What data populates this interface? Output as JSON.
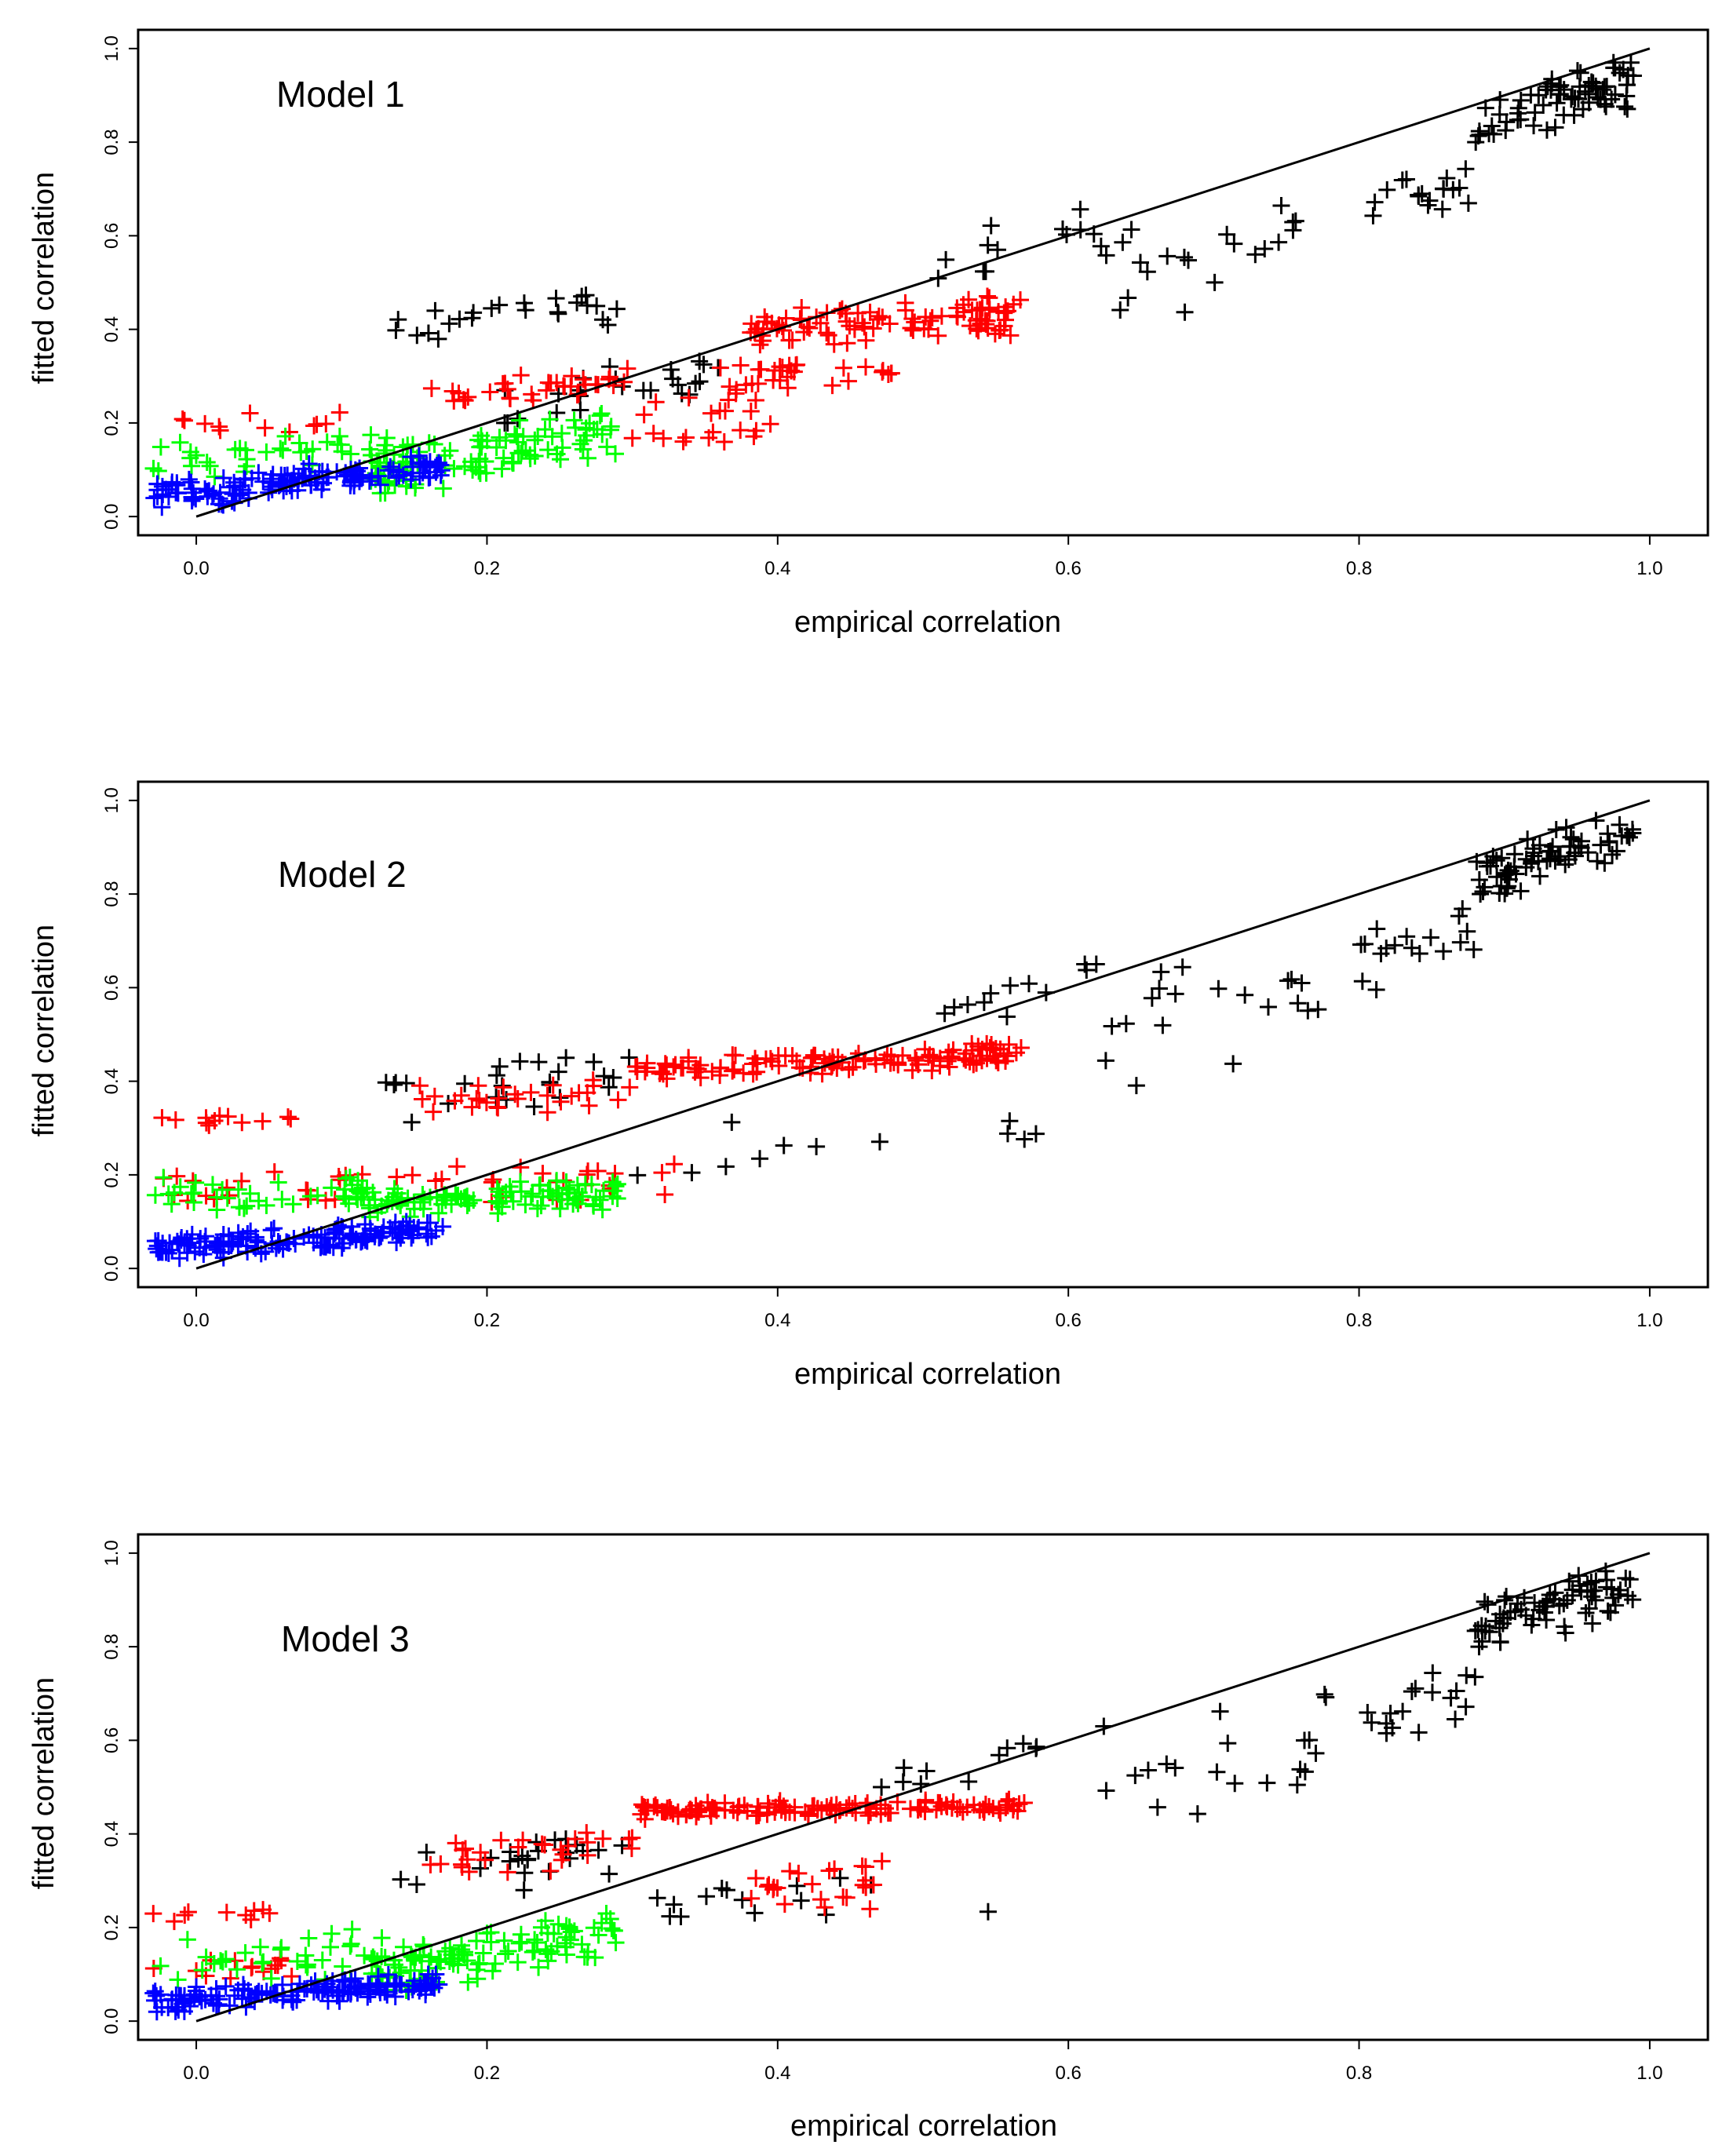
{
  "figure": {
    "panels": [
      {
        "id": "model1",
        "title": "Model 1"
      },
      {
        "id": "model2",
        "title": "Model 2"
      },
      {
        "id": "model3",
        "title": "Model 3"
      }
    ]
  },
  "chart_data": [
    {
      "type": "scatter",
      "title": "Model 1",
      "xlabel": "empirical correlation",
      "ylabel": "fitted correlation",
      "xlim": [
        -0.04,
        1.04
      ],
      "ylim": [
        -0.04,
        1.04
      ],
      "xticks": [
        "0.0",
        "0.2",
        "0.4",
        "0.6",
        "0.8",
        "1.0"
      ],
      "yticks": [
        "0.0",
        "0.2",
        "0.4",
        "0.6",
        "0.8",
        "1.0"
      ],
      "grid": false,
      "marker": "+",
      "reference_line": {
        "name": "identity line y = x",
        "x": [
          0,
          1
        ],
        "y": [
          0,
          1
        ]
      },
      "series": [
        {
          "name": "black",
          "color": "#000000",
          "clusters": [
            {
              "n": 25,
              "x": [
                0.13,
                0.3
              ],
              "y": [
                0.37,
                0.5
              ],
              "slope": 0.2
            },
            {
              "n": 25,
              "x": [
                0.2,
                0.36
              ],
              "y": [
                0.2,
                0.34
              ],
              "slope": 0.5
            },
            {
              "n": 12,
              "x": [
                0.5,
                0.62
              ],
              "y": [
                0.5,
                0.66
              ],
              "slope": 0.8
            },
            {
              "n": 22,
              "x": [
                0.62,
                0.78
              ],
              "y": [
                0.4,
                0.75
              ],
              "slope": 0.6
            },
            {
              "n": 18,
              "x": [
                0.8,
                0.88
              ],
              "y": [
                0.6,
                0.8
              ],
              "slope": 0.7
            },
            {
              "n": 75,
              "x": [
                0.88,
                0.99
              ],
              "y": [
                0.8,
                0.97
              ],
              "slope": 0.9
            }
          ]
        },
        {
          "name": "red",
          "color": "#ff0000",
          "clusters": [
            {
              "n": 12,
              "x": [
                -0.03,
                0.1
              ],
              "y": [
                0.15,
                0.24
              ],
              "slope": 0.1
            },
            {
              "n": 35,
              "x": [
                0.16,
                0.3
              ],
              "y": [
                0.22,
                0.32
              ],
              "slope": 0.4
            },
            {
              "n": 22,
              "x": [
                0.3,
                0.4
              ],
              "y": [
                0.1,
                0.3
              ],
              "slope": 0.4
            },
            {
              "n": 30,
              "x": [
                0.36,
                0.48
              ],
              "y": [
                0.25,
                0.35
              ],
              "slope": 0.1
            },
            {
              "n": 100,
              "x": [
                0.38,
                0.57
              ],
              "y": [
                0.35,
                0.48
              ],
              "slope": 0.15
            }
          ]
        },
        {
          "name": "green",
          "color": "#00ff00",
          "clusters": [
            {
              "n": 40,
              "x": [
                -0.03,
                0.15
              ],
              "y": [
                0.07,
                0.2
              ],
              "slope": 0.2
            },
            {
              "n": 110,
              "x": [
                0.12,
                0.29
              ],
              "y": [
                0.05,
                0.22
              ],
              "slope": 0.6
            }
          ]
        },
        {
          "name": "blue",
          "color": "#0000ff",
          "clusters": [
            {
              "n": 150,
              "x": [
                -0.03,
                0.17
              ],
              "y": [
                0.02,
                0.13
              ],
              "slope": 0.3
            }
          ]
        }
      ]
    },
    {
      "type": "scatter",
      "title": "Model 2",
      "xlabel": "empirical correlation",
      "ylabel": "fitted correlation",
      "xlim": [
        -0.04,
        1.04
      ],
      "ylim": [
        -0.04,
        1.04
      ],
      "xticks": [
        "0.0",
        "0.2",
        "0.4",
        "0.6",
        "0.8",
        "1.0"
      ],
      "yticks": [
        "0.0",
        "0.2",
        "0.4",
        "0.6",
        "0.8",
        "1.0"
      ],
      "grid": false,
      "marker": "+",
      "reference_line": {
        "name": "identity line y = x",
        "x": [
          0,
          1
        ],
        "y": [
          0,
          1
        ]
      },
      "series": [
        {
          "name": "black",
          "color": "#000000",
          "clusters": [
            {
              "n": 25,
              "x": [
                0.13,
                0.3
              ],
              "y": [
                0.3,
                0.48
              ],
              "slope": 0.4
            },
            {
              "n": 12,
              "x": [
                0.3,
                0.58
              ],
              "y": [
                0.18,
                0.35
              ],
              "slope": 0.2
            },
            {
              "n": 12,
              "x": [
                0.47,
                0.62
              ],
              "y": [
                0.5,
                0.65
              ],
              "slope": 0.8
            },
            {
              "n": 20,
              "x": [
                0.62,
                0.78
              ],
              "y": [
                0.37,
                0.75
              ],
              "slope": 0.6
            },
            {
              "n": 18,
              "x": [
                0.8,
                0.88
              ],
              "y": [
                0.58,
                0.8
              ],
              "slope": 0.7
            },
            {
              "n": 75,
              "x": [
                0.88,
                0.99
              ],
              "y": [
                0.8,
                0.97
              ],
              "slope": 0.9
            }
          ]
        },
        {
          "name": "red",
          "color": "#ff0000",
          "clusters": [
            {
              "n": 12,
              "x": [
                -0.03,
                0.07
              ],
              "y": [
                0.3,
                0.34
              ],
              "slope": 0.1
            },
            {
              "n": 25,
              "x": [
                -0.03,
                0.18
              ],
              "y": [
                0.12,
                0.24
              ],
              "slope": 0.2
            },
            {
              "n": 30,
              "x": [
                0.15,
                0.3
              ],
              "y": [
                0.3,
                0.44
              ],
              "slope": 0.2
            },
            {
              "n": 20,
              "x": [
                0.2,
                0.33
              ],
              "y": [
                0.12,
                0.26
              ],
              "slope": 0.2
            },
            {
              "n": 130,
              "x": [
                0.3,
                0.57
              ],
              "y": [
                0.4,
                0.48
              ],
              "slope": 0.15
            }
          ]
        },
        {
          "name": "green",
          "color": "#00ff00",
          "clusters": [
            {
              "n": 40,
              "x": [
                -0.03,
                0.12
              ],
              "y": [
                0.1,
                0.22
              ],
              "slope": 0.1
            },
            {
              "n": 110,
              "x": [
                0.1,
                0.29
              ],
              "y": [
                0.1,
                0.2
              ],
              "slope": 0.1
            }
          ]
        },
        {
          "name": "blue",
          "color": "#0000ff",
          "clusters": [
            {
              "n": 150,
              "x": [
                -0.03,
                0.17
              ],
              "y": [
                0.02,
                0.1
              ],
              "slope": 0.2
            }
          ]
        }
      ]
    },
    {
      "type": "scatter",
      "title": "Model 3",
      "xlabel": "empirical correlation",
      "ylabel": "fitted correlation",
      "xlim": [
        -0.04,
        1.04
      ],
      "ylim": [
        -0.04,
        1.04
      ],
      "xticks": [
        "0.0",
        "0.2",
        "0.4",
        "0.6",
        "0.8",
        "1.0"
      ],
      "yticks": [
        "0.0",
        "0.2",
        "0.4",
        "0.6",
        "0.8",
        "1.0"
      ],
      "grid": false,
      "marker": "+",
      "reference_line": {
        "name": "identity line y = x",
        "x": [
          0,
          1
        ],
        "y": [
          0,
          1
        ]
      },
      "series": [
        {
          "name": "black",
          "color": "#000000",
          "clusters": [
            {
              "n": 25,
              "x": [
                0.13,
                0.3
              ],
              "y": [
                0.25,
                0.42
              ],
              "slope": 0.4
            },
            {
              "n": 15,
              "x": [
                0.3,
                0.57
              ],
              "y": [
                0.18,
                0.34
              ],
              "slope": 0.2
            },
            {
              "n": 12,
              "x": [
                0.47,
                0.63
              ],
              "y": [
                0.5,
                0.63
              ],
              "slope": 0.8
            },
            {
              "n": 20,
              "x": [
                0.62,
                0.78
              ],
              "y": [
                0.32,
                0.73
              ],
              "slope": 0.6
            },
            {
              "n": 18,
              "x": [
                0.8,
                0.88
              ],
              "y": [
                0.56,
                0.78
              ],
              "slope": 0.7
            },
            {
              "n": 75,
              "x": [
                0.88,
                0.99
              ],
              "y": [
                0.8,
                0.97
              ],
              "slope": 0.9
            }
          ]
        },
        {
          "name": "red",
          "color": "#ff0000",
          "clusters": [
            {
              "n": 10,
              "x": [
                -0.03,
                0.07
              ],
              "y": [
                0.2,
                0.26
              ],
              "slope": 0.1
            },
            {
              "n": 15,
              "x": [
                -0.03,
                0.08
              ],
              "y": [
                0.08,
                0.15
              ],
              "slope": 0.1
            },
            {
              "n": 30,
              "x": [
                0.16,
                0.3
              ],
              "y": [
                0.28,
                0.44
              ],
              "slope": 0.2
            },
            {
              "n": 25,
              "x": [
                0.38,
                0.48
              ],
              "y": [
                0.2,
                0.38
              ],
              "slope": 0.2
            },
            {
              "n": 140,
              "x": [
                0.3,
                0.57
              ],
              "y": [
                0.43,
                0.48
              ],
              "slope": 0.05
            }
          ]
        },
        {
          "name": "green",
          "color": "#00ff00",
          "clusters": [
            {
              "n": 40,
              "x": [
                -0.03,
                0.14
              ],
              "y": [
                0.04,
                0.22
              ],
              "slope": 0.1
            },
            {
              "n": 110,
              "x": [
                0.12,
                0.29
              ],
              "y": [
                0.06,
                0.23
              ],
              "slope": 0.5
            }
          ]
        },
        {
          "name": "blue",
          "color": "#0000ff",
          "clusters": [
            {
              "n": 150,
              "x": [
                -0.03,
                0.17
              ],
              "y": [
                0.02,
                0.1
              ],
              "slope": 0.2
            }
          ]
        }
      ]
    }
  ]
}
